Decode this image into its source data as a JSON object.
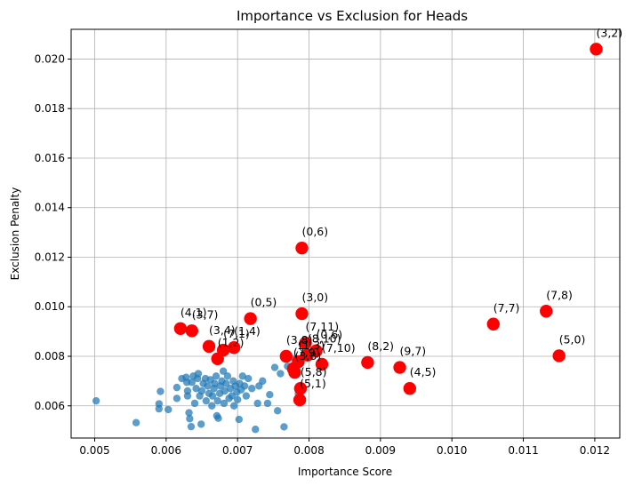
{
  "chart_data": {
    "type": "scatter",
    "title": "Importance vs Exclusion for Heads",
    "xlabel": "Importance Score",
    "ylabel": "Exclusion Penalty",
    "xlim": [
      0.00467,
      0.01235
    ],
    "ylim": [
      0.0047,
      0.0212
    ],
    "xticks": [
      0.005,
      0.006,
      0.007,
      0.008,
      0.009,
      0.01,
      0.011,
      0.012
    ],
    "xtick_labels": [
      "0.005",
      "0.006",
      "0.007",
      "0.008",
      "0.009",
      "0.010",
      "0.011",
      "0.012"
    ],
    "yticks": [
      0.006,
      0.008,
      0.01,
      0.012,
      0.014,
      0.016,
      0.018,
      0.02
    ],
    "ytick_labels": [
      "0.006",
      "0.008",
      "0.010",
      "0.012",
      "0.014",
      "0.016",
      "0.018",
      "0.020"
    ],
    "grid": true,
    "colors": {
      "regular": "#1f77b4",
      "highlight": "#ff0000"
    },
    "regular_points": [
      [
        0.00502,
        0.0062
      ],
      [
        0.00558,
        0.00532
      ],
      [
        0.0059,
        0.00608
      ],
      [
        0.0059,
        0.00588
      ],
      [
        0.00592,
        0.00658
      ],
      [
        0.00603,
        0.00585
      ],
      [
        0.00615,
        0.00674
      ],
      [
        0.00615,
        0.0063
      ],
      [
        0.00622,
        0.0071
      ],
      [
        0.00628,
        0.00715
      ],
      [
        0.00629,
        0.00695
      ],
      [
        0.0063,
        0.0066
      ],
      [
        0.0063,
        0.0064
      ],
      [
        0.00632,
        0.00572
      ],
      [
        0.00633,
        0.00548
      ],
      [
        0.00635,
        0.00516
      ],
      [
        0.00636,
        0.00695
      ],
      [
        0.00638,
        0.0072
      ],
      [
        0.0064,
        0.0061
      ],
      [
        0.00642,
        0.0067
      ],
      [
        0.00644,
        0.0071
      ],
      [
        0.00645,
        0.0073
      ],
      [
        0.00647,
        0.0064
      ],
      [
        0.00649,
        0.00526
      ],
      [
        0.0065,
        0.0066
      ],
      [
        0.00652,
        0.0069
      ],
      [
        0.00655,
        0.0071
      ],
      [
        0.00656,
        0.0062
      ],
      [
        0.00658,
        0.0068
      ],
      [
        0.0066,
        0.0065
      ],
      [
        0.00662,
        0.00705
      ],
      [
        0.00664,
        0.006
      ],
      [
        0.00665,
        0.0064
      ],
      [
        0.00667,
        0.0067
      ],
      [
        0.00668,
        0.0069
      ],
      [
        0.0067,
        0.0072
      ],
      [
        0.00671,
        0.0056
      ],
      [
        0.00672,
        0.0062
      ],
      [
        0.00673,
        0.0055
      ],
      [
        0.00675,
        0.0065
      ],
      [
        0.00676,
        0.0068
      ],
      [
        0.00678,
        0.007
      ],
      [
        0.0068,
        0.0074
      ],
      [
        0.00681,
        0.0061
      ],
      [
        0.00682,
        0.0066
      ],
      [
        0.00684,
        0.0069
      ],
      [
        0.00686,
        0.0072
      ],
      [
        0.00688,
        0.0063
      ],
      [
        0.0069,
        0.0067
      ],
      [
        0.00692,
        0.0064
      ],
      [
        0.00694,
        0.007
      ],
      [
        0.00695,
        0.006
      ],
      [
        0.00697,
        0.0068
      ],
      [
        0.00699,
        0.00655
      ],
      [
        0.007,
        0.00625
      ],
      [
        0.00702,
        0.00545
      ],
      [
        0.00703,
        0.0069
      ],
      [
        0.00705,
        0.00665
      ],
      [
        0.00707,
        0.0072
      ],
      [
        0.0071,
        0.0068
      ],
      [
        0.00712,
        0.0064
      ],
      [
        0.00715,
        0.0071
      ],
      [
        0.0072,
        0.0067
      ],
      [
        0.00725,
        0.00505
      ],
      [
        0.00728,
        0.0061
      ],
      [
        0.0073,
        0.0068
      ],
      [
        0.00735,
        0.007
      ],
      [
        0.00742,
        0.0061
      ],
      [
        0.00745,
        0.00645
      ],
      [
        0.00752,
        0.00755
      ],
      [
        0.00756,
        0.0058
      ],
      [
        0.0076,
        0.0073
      ],
      [
        0.00765,
        0.00515
      ],
      [
        0.0077,
        0.0076
      ],
      [
        0.0078,
        0.0079
      ],
      [
        0.00785,
        0.0065
      ]
    ],
    "highlight_points": [
      {
        "label": "(3,2)",
        "x": 0.01202,
        "y": 0.0204
      },
      {
        "label": "(0,6)",
        "x": 0.0079,
        "y": 0.01237
      },
      {
        "label": "(7,8)",
        "x": 0.01132,
        "y": 0.00982
      },
      {
        "label": "(7,7)",
        "x": 0.01058,
        "y": 0.0093
      },
      {
        "label": "(5,0)",
        "x": 0.0115,
        "y": 0.00802
      },
      {
        "label": "(3,0)",
        "x": 0.0079,
        "y": 0.00972
      },
      {
        "label": "(0,5)",
        "x": 0.00718,
        "y": 0.00952
      },
      {
        "label": "(4,1)",
        "x": 0.0062,
        "y": 0.00912
      },
      {
        "label": "(3,7)",
        "x": 0.00636,
        "y": 0.00903
      },
      {
        "label": "(7,11)",
        "x": 0.00795,
        "y": 0.00853
      },
      {
        "label": "(3,4)",
        "x": 0.0066,
        "y": 0.0084
      },
      {
        "label": "(1,4)",
        "x": 0.00695,
        "y": 0.00835
      },
      {
        "label": "(0,6)",
        "x": 0.0081,
        "y": 0.00822
      },
      {
        "label": "(7,1)",
        "x": 0.0068,
        "y": 0.00825
      },
      {
        "label": "(1,2)",
        "x": 0.00672,
        "y": 0.0079
      },
      {
        "label": "(8,2)",
        "x": 0.00882,
        "y": 0.00775
      },
      {
        "label": "(8,10)",
        "x": 0.00798,
        "y": 0.00805
      },
      {
        "label": "(7,10)",
        "x": 0.00818,
        "y": 0.00768
      },
      {
        "label": "(9,7)",
        "x": 0.00927,
        "y": 0.00755
      },
      {
        "label": "(3,8)",
        "x": 0.00768,
        "y": 0.008
      },
      {
        "label": "(7,9)",
        "x": 0.00778,
        "y": 0.0075
      },
      {
        "label": "(4,5)",
        "x": 0.00941,
        "y": 0.0067
      },
      {
        "label": "(1,3)",
        "x": 0.00785,
        "y": 0.00778
      },
      {
        "label": "(3,8)",
        "x": 0.0078,
        "y": 0.00735
      },
      {
        "label": "(5,1)",
        "x": 0.00787,
        "y": 0.00624
      },
      {
        "label": "(5,8)",
        "x": 0.00788,
        "y": 0.0067
      }
    ]
  }
}
